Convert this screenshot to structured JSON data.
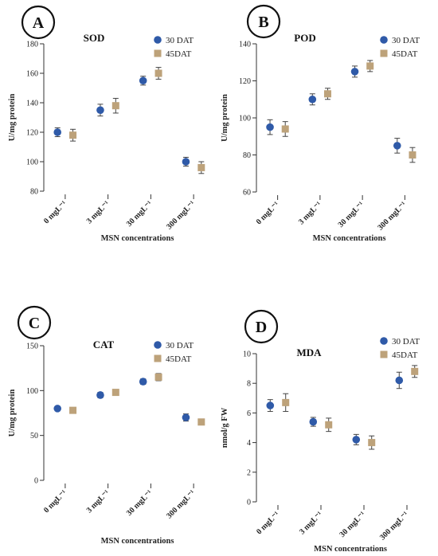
{
  "chart_data": [
    {
      "type": "scatter",
      "panel": "A",
      "title": "SOD",
      "ylabel": "U/mg protein",
      "xlabel": "MSN concentrations",
      "ylim": [
        80,
        180
      ],
      "yticks": [
        80,
        100,
        120,
        140,
        160,
        180
      ],
      "categories": [
        "0 mgL⁻¹",
        "3 mgL⁻¹",
        "30 mgL⁻¹",
        "300 mgL⁻¹"
      ],
      "legend_position": "top-right",
      "series": [
        {
          "name": "30 DAT",
          "color": "#2f5aa8",
          "marker": "circle",
          "values": [
            120,
            135,
            155,
            100
          ],
          "errors": [
            3,
            4,
            3,
            3
          ]
        },
        {
          "name": "45DAT",
          "color": "#bda27a",
          "marker": "square",
          "values": [
            118,
            138,
            160,
            96
          ],
          "errors": [
            4,
            5,
            4,
            4
          ]
        }
      ]
    },
    {
      "type": "scatter",
      "panel": "B",
      "title": "POD",
      "ylabel": "U/mg protein",
      "xlabel": "MSN concentrations",
      "ylim": [
        60,
        140
      ],
      "yticks": [
        60,
        80,
        100,
        120,
        140
      ],
      "categories": [
        "0 mgL⁻¹",
        "3 mgL⁻¹",
        "30 mgL⁻¹",
        "300 mgL⁻¹"
      ],
      "legend_position": "top-right",
      "series": [
        {
          "name": "30 DAT",
          "color": "#2f5aa8",
          "marker": "circle",
          "values": [
            95,
            110,
            125,
            85
          ],
          "errors": [
            4,
            3,
            3,
            4
          ]
        },
        {
          "name": "45DAT",
          "color": "#bda27a",
          "marker": "square",
          "values": [
            94,
            113,
            128,
            80
          ],
          "errors": [
            4,
            3,
            3,
            4
          ]
        }
      ]
    },
    {
      "type": "scatter",
      "panel": "C",
      "title": "CAT",
      "ylabel": "U/mg protein",
      "xlabel": "MSN concentrations",
      "ylim": [
        0,
        150
      ],
      "yticks": [
        0,
        50,
        100,
        150
      ],
      "categories": [
        "0 mgL⁻¹",
        "3 mgL⁻¹",
        "30 mgL⁻¹",
        "300 mgL⁻¹"
      ],
      "legend_position": "top-right",
      "series": [
        {
          "name": "30 DAT",
          "color": "#2f5aa8",
          "marker": "circle",
          "values": [
            80,
            95,
            110,
            70
          ],
          "errors": [
            2,
            3,
            3,
            4
          ]
        },
        {
          "name": "45DAT",
          "color": "#bda27a",
          "marker": "square",
          "values": [
            78,
            98,
            115,
            65
          ],
          "errors": [
            2,
            2,
            4,
            2
          ]
        }
      ]
    },
    {
      "type": "scatter",
      "panel": "D",
      "title": "MDA",
      "ylabel": "nmol/g FW",
      "xlabel": "MSN concentrations",
      "ylim": [
        0,
        10
      ],
      "yticks": [
        0,
        2,
        4,
        6,
        8,
        10
      ],
      "categories": [
        "0 mgL⁻¹",
        "3 mgL⁻¹",
        "30 mgL⁻¹",
        "300 mgL⁻¹"
      ],
      "legend_position": "top-right",
      "series": [
        {
          "name": "30 DAT",
          "color": "#2f5aa8",
          "marker": "circle",
          "values": [
            6.5,
            5.4,
            4.2,
            8.2
          ],
          "errors": [
            0.4,
            0.3,
            0.35,
            0.55
          ]
        },
        {
          "name": "45DAT",
          "color": "#bda27a",
          "marker": "square",
          "values": [
            6.7,
            5.2,
            4.0,
            8.8
          ],
          "errors": [
            0.6,
            0.45,
            0.45,
            0.4
          ]
        }
      ]
    }
  ]
}
